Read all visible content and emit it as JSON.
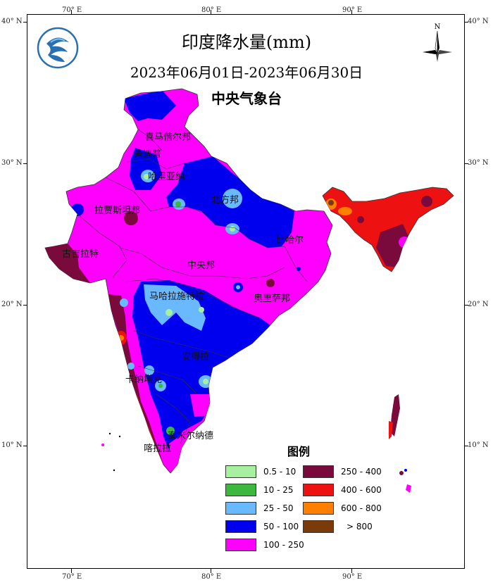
{
  "titles": {
    "main": "印度降水量(mm)",
    "period": "2023年06月01日-2023年06月30日",
    "agency": "中央气象台"
  },
  "compass": {
    "label": "N"
  },
  "axes": {
    "top_lon": [
      "70° E",
      "80° E",
      "90° E"
    ],
    "bottom_lon": [
      "70° E",
      "80° E",
      "90° E"
    ],
    "left_lat": [
      "40° N",
      "30° N",
      "20° N",
      "10° N"
    ],
    "right_lat": [
      "40° N",
      "30° N",
      "20° N",
      "10° N"
    ]
  },
  "regions": {
    "himachal": "喜马偕尔邦",
    "punjab": "旁遮普",
    "haryana": "哈里亚纳",
    "uttar_pradesh": "北方邦",
    "rajasthan": "拉贾斯坦邦",
    "bihar": "比哈尔",
    "gujarat": "古吉拉特",
    "madhya_pradesh": "中央邦",
    "maharashtra": "马哈拉施特拉",
    "odisha": "奥里萨邦",
    "andhra": "安得拉",
    "karnataka": "卡纳塔克",
    "tamil_nadu": "泰米尔纳德",
    "kerala": "喀拉拉"
  },
  "legend": {
    "title": "图例",
    "items": [
      {
        "label": "0.5 - 10",
        "color": "#a6f0a0"
      },
      {
        "label": "10 - 25",
        "color": "#3cb83c"
      },
      {
        "label": "25 - 50",
        "color": "#6ab9ff"
      },
      {
        "label": "50 - 100",
        "color": "#0000ee"
      },
      {
        "label": "100 - 250",
        "color": "#ff00ff"
      },
      {
        "label": "250 - 400",
        "color": "#7a0a3c"
      },
      {
        "label": "400 - 600",
        "color": "#ee1111"
      },
      {
        "label": "600 - 800",
        "color": "#ff8000"
      },
      {
        "label": "> 800",
        "color": "#7a3a0a"
      }
    ]
  }
}
